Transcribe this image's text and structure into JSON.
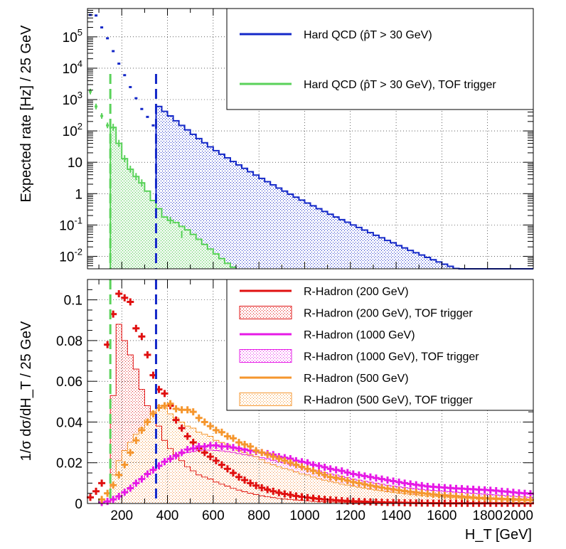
{
  "colors": {
    "qcd": "#1428c8",
    "qcd_tof": "#5ad25a",
    "rh200": "#e01010",
    "rh1000": "#e619e6",
    "rh500": "#f5962d"
  },
  "chart_data": [
    {
      "type": "histogram",
      "yscale": "log",
      "ylabel": "Expected rate [Hz] / 25 GeV",
      "xlim": [
        50,
        2000
      ],
      "ylim": [
        0.004,
        800000
      ],
      "bin_width": 25,
      "ytick_labels": [
        "10^{-2}",
        "10^{-1}",
        "1",
        "10",
        "10^{2}",
        "10^{3}",
        "10^{4}",
        "10^{5}"
      ],
      "grid": true,
      "vlines": [
        {
          "x": 150,
          "color": "qcd_tof",
          "style": "dashed"
        },
        {
          "x": 350,
          "color": "qcd",
          "style": "dashed"
        }
      ],
      "legend": {
        "position": "top-right",
        "entries": [
          {
            "label": "Hard QCD (p̂T > 30 GeV)",
            "color": "qcd",
            "kind": "line"
          },
          {
            "label": "Hard QCD (p̂T > 30 GeV), TOF trigger",
            "color": "qcd_tof",
            "kind": "line"
          }
        ]
      },
      "series": [
        {
          "name": "Hard QCD (p̂T > 30 GeV)",
          "color": "qcd",
          "points_x": [
            62.5,
            87.5,
            112.5,
            137.5,
            162.5,
            187.5,
            212.5,
            237.5,
            262.5,
            287.5,
            312.5,
            337.5
          ],
          "points_y": [
            500000,
            480000,
            200000,
            90000,
            35000,
            14000,
            6000,
            2500,
            1100,
            500,
            280,
            150
          ],
          "hist_start": 350,
          "hist_values": [
            600,
            420,
            300,
            210,
            150,
            108,
            78,
            57,
            42,
            31,
            23.5,
            18,
            13.8,
            10.6,
            8.2,
            6.4,
            5.0,
            3.9,
            3.05,
            2.4,
            1.9,
            1.5,
            1.2,
            0.96,
            0.77,
            0.62,
            0.5,
            0.41,
            0.33,
            0.27,
            0.22,
            0.18,
            0.148,
            0.122,
            0.1,
            0.083,
            0.069,
            0.057,
            0.047,
            0.039,
            0.032,
            0.027,
            0.022,
            0.0185,
            0.0155,
            0.013,
            0.011,
            0.0092,
            0.0078,
            0.0066,
            0.0056,
            0.0048,
            0.0041,
            0.0035,
            0.003,
            0.0026,
            0.0022,
            0.0019,
            0.0016,
            0.0014,
            0.0012,
            0.00105,
            0.0009,
            0.00078,
            0.00068,
            0.0006
          ]
        },
        {
          "name": "Hard QCD (p̂T > 30 GeV), TOF trigger",
          "color": "qcd_tof",
          "points_x": [
            62.5,
            87.5,
            112.5,
            137.5
          ],
          "points_y": [
            1800,
            600,
            300,
            150
          ],
          "hist_start": 150,
          "hist_values": [
            130,
            40,
            13,
            6,
            3.5,
            2.2,
            1.2,
            0.6,
            0.33,
            0.18,
            0.14,
            0.12,
            0.09,
            0.07,
            0.05,
            0.035,
            0.024,
            0.017,
            0.012,
            0.0085,
            0.006,
            0.0045
          ]
        }
      ]
    },
    {
      "type": "histogram",
      "yscale": "linear",
      "ylabel": "1/σ dσ/dH_T / 25 GeV",
      "xlabel": "H_T [GeV]",
      "xlim": [
        50,
        2000
      ],
      "ylim": [
        0,
        0.11
      ],
      "bin_width": 25,
      "xticks": [
        200,
        400,
        600,
        800,
        1000,
        1200,
        1400,
        1600,
        1800,
        2000
      ],
      "yticks": [
        0,
        0.02,
        0.04,
        0.06,
        0.08,
        0.1
      ],
      "grid": true,
      "vlines": [
        {
          "x": 150,
          "color": "qcd_tof",
          "style": "dashed"
        },
        {
          "x": 350,
          "color": "qcd",
          "style": "dashed"
        }
      ],
      "legend": {
        "position": "top-right",
        "entries": [
          {
            "label": "R-Hadron (200 GeV)",
            "color": "rh200",
            "kind": "line"
          },
          {
            "label": "R-Hadron (200 GeV), TOF trigger",
            "color": "rh200",
            "kind": "fill"
          },
          {
            "label": "R-Hadron (1000 GeV)",
            "color": "rh1000",
            "kind": "line"
          },
          {
            "label": "R-Hadron (1000 GeV), TOF trigger",
            "color": "rh1000",
            "kind": "fill"
          },
          {
            "label": "R-Hadron (500 GeV)",
            "color": "rh500",
            "kind": "line"
          },
          {
            "label": "R-Hadron (500 GeV), TOF trigger",
            "color": "rh500",
            "kind": "fill"
          }
        ]
      },
      "series": [
        {
          "name": "R-Hadron (200 GeV)",
          "color": "rh200",
          "kind": "points",
          "x_start": 50,
          "values": [
            0.003,
            0.006,
            0.01,
            0.078,
            0.093,
            0.103,
            0.101,
            0.099,
            0.086,
            0.082,
            0.073,
            0.063,
            0.056,
            0.054,
            0.048,
            0.041,
            0.037,
            0.033,
            0.03,
            0.027,
            0.025,
            0.023,
            0.021,
            0.019,
            0.017,
            0.015,
            0.013,
            0.0115,
            0.01,
            0.0088,
            0.0077,
            0.0068,
            0.006,
            0.0053,
            0.0047,
            0.0042,
            0.0037,
            0.0033,
            0.0029,
            0.0026,
            0.0023,
            0.002,
            0.0018,
            0.0016,
            0.0014,
            0.0012,
            0.0011,
            0.001,
            0.0009,
            0.0008,
            0.0007,
            0.0006,
            0.0005,
            0.00045,
            0.0004,
            0.00035,
            0.0003,
            0.00025,
            0.0002,
            0.0002,
            0.00015,
            0.00015,
            0.0001,
            0.0001,
            0.0001,
            0.0001,
            0.0001,
            0.0001,
            0.0001,
            0.0001,
            0.0001,
            0.0001,
            0.0001,
            0.0001,
            0.0001,
            0.0001,
            0.0001,
            0.0001
          ]
        },
        {
          "name": "R-Hadron (200 GeV), TOF trigger",
          "color": "rh200",
          "kind": "hist",
          "x_start": 50,
          "values": [
            0.0,
            0.0,
            0.0,
            0.0,
            0.053,
            0.088,
            0.08,
            0.073,
            0.066,
            0.056,
            0.048,
            0.045,
            0.038,
            0.031,
            0.027,
            0.024,
            0.021,
            0.018,
            0.016,
            0.014,
            0.013,
            0.012,
            0.0105,
            0.0095,
            0.0085,
            0.0075,
            0.0066,
            0.0058,
            0.005,
            0.0044,
            0.0038,
            0.0033,
            0.0029,
            0.0025,
            0.0022,
            0.0019,
            0.0017,
            0.0015,
            0.0013,
            0.0011,
            0.001,
            0.0009,
            0.0008,
            0.0007,
            0.0006,
            0.0005,
            0.0004,
            0.0004,
            0.0003,
            0.0003,
            0.0002,
            0.0002,
            0.0002,
            0.0001,
            0.0001,
            0.0001,
            0.0001,
            0.0001,
            0.0001,
            0.0001,
            0.0001,
            0.0001,
            0.0001,
            0.0001,
            0.0001,
            0.0001,
            0.0001,
            0.0001,
            0.0001,
            0.0001,
            0.0001,
            0.0001,
            0.0001,
            0.0001,
            0.0001,
            0.0001,
            0.0001,
            0.0001
          ]
        },
        {
          "name": "R-Hadron (1000 GeV)",
          "color": "rh1000",
          "kind": "points",
          "x_start": 50,
          "values": [
            0.0,
            0.0,
            0.0005,
            0.001,
            0.002,
            0.0035,
            0.0055,
            0.0075,
            0.01,
            0.012,
            0.0145,
            0.0165,
            0.0185,
            0.0205,
            0.022,
            0.0235,
            0.025,
            0.0265,
            0.027,
            0.028,
            0.028,
            0.0285,
            0.0285,
            0.028,
            0.028,
            0.0275,
            0.027,
            0.0265,
            0.026,
            0.0255,
            0.025,
            0.0245,
            0.024,
            0.023,
            0.0225,
            0.022,
            0.021,
            0.0205,
            0.02,
            0.019,
            0.0185,
            0.0178,
            0.017,
            0.0165,
            0.016,
            0.0152,
            0.0145,
            0.014,
            0.0135,
            0.013,
            0.0125,
            0.012,
            0.0115,
            0.011,
            0.0105,
            0.01,
            0.0096,
            0.0092,
            0.0088,
            0.0084,
            0.0082,
            0.008,
            0.0078,
            0.0076,
            0.0074,
            0.0073,
            0.0071,
            0.007,
            0.0068,
            0.0067,
            0.0065,
            0.0063,
            0.006,
            0.0058,
            0.0055,
            0.0052,
            0.005,
            0.0048
          ]
        },
        {
          "name": "R-Hadron (1000 GeV), TOF trigger",
          "color": "rh1000",
          "kind": "hist",
          "x_start": 50,
          "values": [
            0.0,
            0.0,
            0.0,
            0.0,
            0.002,
            0.0035,
            0.0055,
            0.0075,
            0.01,
            0.012,
            0.0145,
            0.0165,
            0.0185,
            0.0205,
            0.0215,
            0.023,
            0.0245,
            0.025,
            0.0255,
            0.026,
            0.0262,
            0.0262,
            0.026,
            0.0258,
            0.0255,
            0.025,
            0.0245,
            0.024,
            0.0235,
            0.023,
            0.0225,
            0.022,
            0.0212,
            0.0205,
            0.02,
            0.0192,
            0.0185,
            0.018,
            0.0172,
            0.0165,
            0.016,
            0.0152,
            0.0145,
            0.014,
            0.0133,
            0.0127,
            0.012,
            0.0115,
            0.011,
            0.0105,
            0.01,
            0.0095,
            0.009,
            0.0086,
            0.0082,
            0.0078,
            0.0075,
            0.0072,
            0.0069,
            0.0066,
            0.0064,
            0.0062,
            0.006,
            0.0058,
            0.0056,
            0.0054,
            0.0052,
            0.005,
            0.0048,
            0.0046,
            0.0044,
            0.0042,
            0.004,
            0.0038,
            0.0036,
            0.0034,
            0.0032,
            0.003
          ]
        },
        {
          "name": "R-Hadron (500 GeV)",
          "color": "rh500",
          "kind": "points",
          "x_start": 50,
          "values": [
            0.0,
            0.0,
            0.002,
            0.005,
            0.009,
            0.014,
            0.019,
            0.025,
            0.031,
            0.036,
            0.04,
            0.044,
            0.047,
            0.048,
            0.049,
            0.0465,
            0.046,
            0.046,
            0.045,
            0.042,
            0.04,
            0.038,
            0.036,
            0.035,
            0.033,
            0.032,
            0.03,
            0.029,
            0.028,
            0.026,
            0.025,
            0.024,
            0.023,
            0.022,
            0.021,
            0.02,
            0.019,
            0.018,
            0.017,
            0.016,
            0.015,
            0.014,
            0.013,
            0.0125,
            0.012,
            0.0112,
            0.0105,
            0.01,
            0.0094,
            0.0088,
            0.0083,
            0.0078,
            0.0073,
            0.0069,
            0.0065,
            0.0061,
            0.0057,
            0.0054,
            0.0051,
            0.0048,
            0.0045,
            0.0042,
            0.004,
            0.0038,
            0.0036,
            0.0034,
            0.0032,
            0.003,
            0.0028,
            0.0027,
            0.0025,
            0.0024,
            0.0023,
            0.0022,
            0.0021,
            0.002,
            0.0019,
            0.0018
          ]
        },
        {
          "name": "R-Hadron (500 GeV), TOF trigger",
          "color": "rh500",
          "kind": "hist",
          "x_start": 50,
          "values": [
            0.0,
            0.0,
            0.0,
            0.0,
            0.014,
            0.021,
            0.026,
            0.03,
            0.034,
            0.037,
            0.041,
            0.045,
            0.048,
            0.047,
            0.044,
            0.042,
            0.04,
            0.038,
            0.037,
            0.035,
            0.034,
            0.033,
            0.031,
            0.03,
            0.029,
            0.027,
            0.026,
            0.025,
            0.024,
            0.023,
            0.0215,
            0.02,
            0.019,
            0.018,
            0.0172,
            0.0165,
            0.0155,
            0.0145,
            0.014,
            0.013,
            0.0122,
            0.0115,
            0.0108,
            0.0102,
            0.0095,
            0.009,
            0.0085,
            0.008,
            0.0075,
            0.007,
            0.0066,
            0.0062,
            0.0058,
            0.0055,
            0.0052,
            0.0049,
            0.0046,
            0.0043,
            0.004,
            0.0038,
            0.0036,
            0.0034,
            0.0032,
            0.003,
            0.0028,
            0.0026,
            0.0025,
            0.0024,
            0.0022,
            0.0021,
            0.002,
            0.0019,
            0.0018,
            0.0017,
            0.0016,
            0.0015,
            0.0014,
            0.0013
          ]
        }
      ]
    }
  ]
}
